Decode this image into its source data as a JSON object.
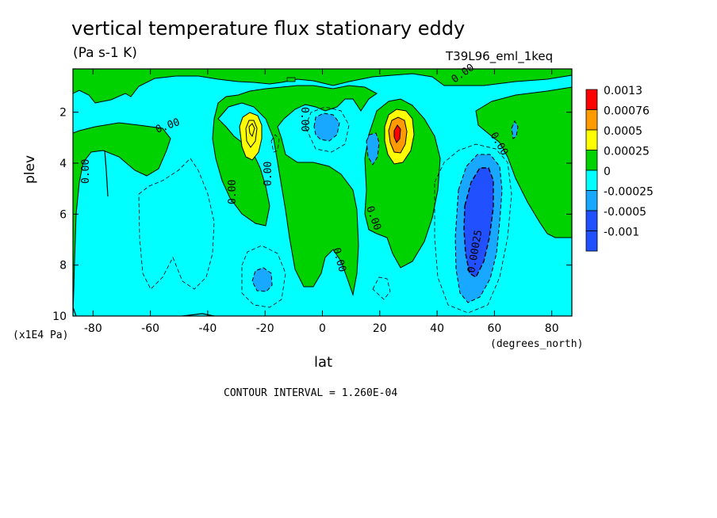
{
  "chart_data": {
    "type": "heatmap",
    "subtype": "filled-contour",
    "title": "vertical temperature flux stationary eddy",
    "units": "(Pa s-1 K)",
    "dataset_label": "T39L96_eml_1keq",
    "xlabel": "lat",
    "x_units": "(degrees_north)",
    "ylabel": "plev",
    "y_units": "(x1E4 Pa)",
    "contour_interval_text": "CONTOUR INTERVAL = 1.260E-04",
    "xlim": [
      -87,
      87
    ],
    "ylim": [
      10,
      0.3
    ],
    "x_ticks": [
      "-80",
      "-60",
      "-40",
      "-20",
      "0",
      "20",
      "40",
      "60",
      "80"
    ],
    "y_ticks": [
      "2",
      "4",
      "6",
      "8",
      "10"
    ],
    "legend": {
      "placement": "right",
      "levels": [
        "0.0013",
        "0.00076",
        "0.0005",
        "0.00025",
        "0",
        "-0.00025",
        "-0.0005",
        "-0.001"
      ],
      "colors": [
        "#ff0000",
        "#ff9a00",
        "#ffff00",
        "#00d200",
        "#00ffff",
        "#18a8ff",
        "#2050ff",
        "#2050ff"
      ]
    },
    "contour_labels": [
      "0.00",
      "0.00",
      "0.00",
      "0.00",
      "0.00",
      "0.00",
      "0.00",
      "0.00",
      "0.00",
      "0.00025"
    ],
    "features": [
      {
        "lat": -25,
        "plev": 2.8,
        "max_band": "0.0005"
      },
      {
        "lat": 26,
        "plev": 2.7,
        "max_band": "0.00076"
      },
      {
        "lat": 55,
        "plev": 6.5,
        "min_band": "-0.001"
      },
      {
        "lat": -22,
        "plev": 8.5,
        "min_band": "-0.0005"
      },
      {
        "lat": -2,
        "plev": 2.6,
        "min_band": "-0.0005"
      },
      {
        "lat": 17,
        "plev": 3.0,
        "min_band": "-0.0005"
      }
    ]
  }
}
